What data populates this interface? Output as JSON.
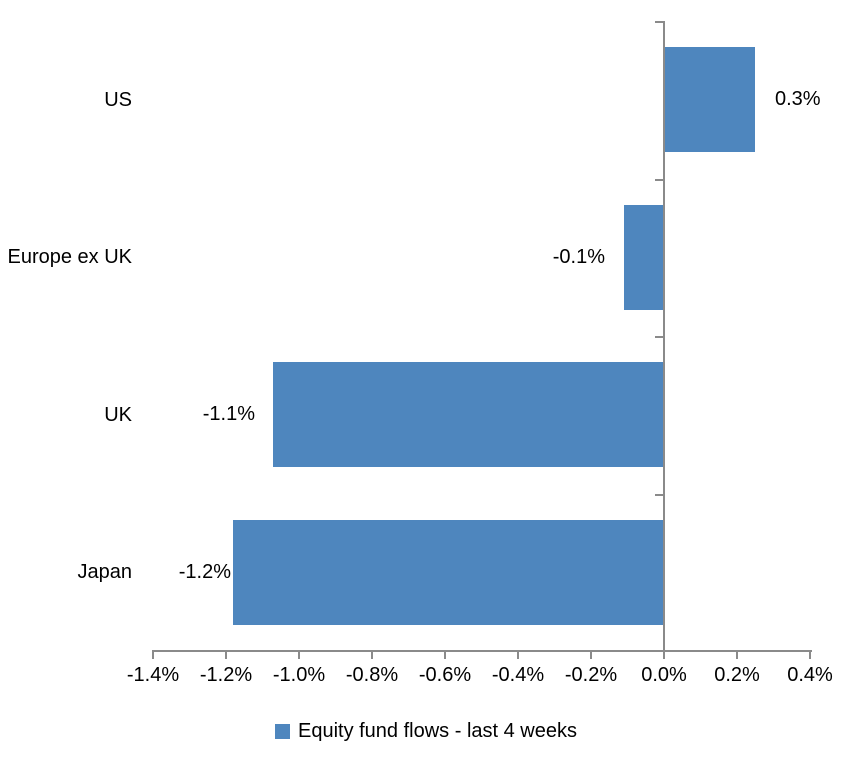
{
  "chart_data": {
    "type": "bar",
    "orientation": "horizontal",
    "categories": [
      "US",
      "Europe ex UK",
      "UK",
      "Japan"
    ],
    "values": [
      0.3,
      -0.1,
      -1.1,
      -1.2
    ],
    "values_plotted_pct": [
      0.25,
      -0.11,
      -1.07,
      -1.18
    ],
    "data_labels": [
      "0.3%",
      "-0.1%",
      "-1.1%",
      "-1.2%"
    ],
    "series": [
      {
        "name": "Equity fund flows - last 4 weeks",
        "values": [
          0.3,
          -0.1,
          -1.1,
          -1.2
        ]
      }
    ],
    "x_axis": {
      "min_pct": -1.4,
      "max_pct": 0.4,
      "step_pct": 0.2,
      "tick_labels": [
        "-1.4%",
        "-1.2%",
        "-1.0%",
        "-0.8%",
        "-0.6%",
        "-0.4%",
        "-0.2%",
        "0.0%",
        "0.2%",
        "0.4%"
      ]
    },
    "legend": {
      "label": "Equity fund flows - last 4 weeks",
      "position": "bottom",
      "marker": "square"
    },
    "grid": false,
    "colors": {
      "bar": "#4e86be",
      "axis": "#8a8a8a",
      "text": "#000000",
      "background": "#ffffff"
    }
  }
}
